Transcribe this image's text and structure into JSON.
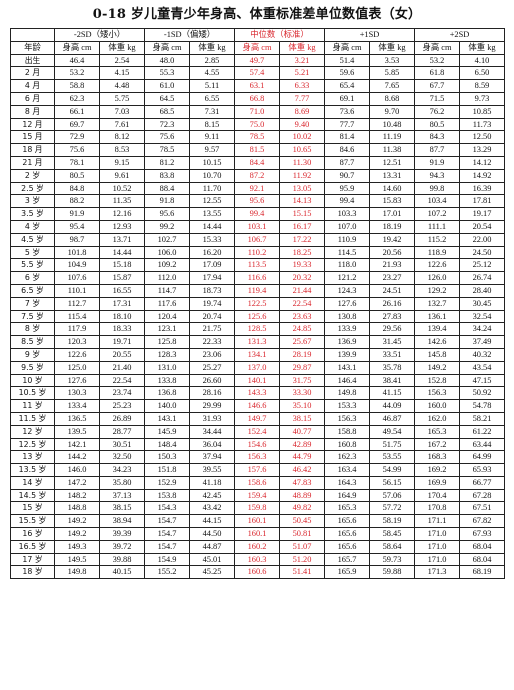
{
  "title": "0-18 岁儿童青少年身高、体重标准差单位数值表（女）",
  "groups": [
    "-2SD（矮小）",
    "-1SD（偏矮）",
    "中位数（标准）",
    "+1SD",
    "+2SD"
  ],
  "column_headers": [
    "年龄",
    "身高 cm",
    "体重 kg",
    "身高 cm",
    "体重 kg",
    "身高 cm",
    "体重 kg",
    "身高 cm",
    "体重 kg",
    "身高 cm",
    "体重 kg"
  ],
  "colors": {
    "accent_red": "#d9272e",
    "text": "#111111"
  },
  "rows": [
    [
      "出生",
      "46.4",
      "2.54",
      "48.0",
      "2.85",
      "49.7",
      "3.21",
      "51.4",
      "3.53",
      "53.2",
      "4.10"
    ],
    [
      "2 月",
      "53.2",
      "4.15",
      "55.3",
      "4.55",
      "57.4",
      "5.21",
      "59.6",
      "5.85",
      "61.8",
      "6.50"
    ],
    [
      "4 月",
      "58.8",
      "4.48",
      "61.0",
      "5.11",
      "63.1",
      "6.33",
      "65.4",
      "7.65",
      "67.7",
      "8.59"
    ],
    [
      "6 月",
      "62.3",
      "5.75",
      "64.5",
      "6.55",
      "66.8",
      "7.77",
      "69.1",
      "8.68",
      "71.5",
      "9.73"
    ],
    [
      "8 月",
      "66.1",
      "7.03",
      "68.5",
      "7.31",
      "71.0",
      "8.69",
      "73.6",
      "9.70",
      "76.2",
      "10.85"
    ],
    [
      "12 月",
      "69.7",
      "7.61",
      "72.3",
      "8.15",
      "75.0",
      "9.40",
      "77.7",
      "10.48",
      "80.5",
      "11.73"
    ],
    [
      "15 月",
      "72.9",
      "8.12",
      "75.6",
      "9.11",
      "78.5",
      "10.02",
      "81.4",
      "11.19",
      "84.3",
      "12.50"
    ],
    [
      "18 月",
      "75.6",
      "8.53",
      "78.5",
      "9.57",
      "81.5",
      "10.65",
      "84.6",
      "11.38",
      "87.7",
      "13.29"
    ],
    [
      "21 月",
      "78.1",
      "9.15",
      "81.2",
      "10.15",
      "84.4",
      "11.30",
      "87.7",
      "12.51",
      "91.9",
      "14.12"
    ],
    [
      "2 岁",
      "80.5",
      "9.61",
      "83.8",
      "10.70",
      "87.2",
      "11.92",
      "90.7",
      "13.31",
      "94.3",
      "14.92"
    ],
    [
      "2.5 岁",
      "84.8",
      "10.52",
      "88.4",
      "11.70",
      "92.1",
      "13.05",
      "95.9",
      "14.60",
      "99.8",
      "16.39"
    ],
    [
      "3 岁",
      "88.2",
      "11.35",
      "91.8",
      "12.55",
      "95.6",
      "14.13",
      "99.4",
      "15.83",
      "103.4",
      "17.81"
    ],
    [
      "3.5 岁",
      "91.9",
      "12.16",
      "95.6",
      "13.55",
      "99.4",
      "15.15",
      "103.3",
      "17.01",
      "107.2",
      "19.17"
    ],
    [
      "4 岁",
      "95.4",
      "12.93",
      "99.2",
      "14.44",
      "103.1",
      "16.17",
      "107.0",
      "18.19",
      "111.1",
      "20.54"
    ],
    [
      "4.5 岁",
      "98.7",
      "13.71",
      "102.7",
      "15.33",
      "106.7",
      "17.22",
      "110.9",
      "19.42",
      "115.2",
      "22.00"
    ],
    [
      "5 岁",
      "101.8",
      "14.44",
      "106.0",
      "16.20",
      "110.2",
      "18.25",
      "114.5",
      "20.56",
      "118.9",
      "24.50"
    ],
    [
      "5.5 岁",
      "104.9",
      "15.18",
      "109.2",
      "17.09",
      "113.5",
      "19.33",
      "118.0",
      "21.93",
      "122.6",
      "25.12"
    ],
    [
      "6 岁",
      "107.6",
      "15.87",
      "112.0",
      "17.94",
      "116.6",
      "20.32",
      "121.2",
      "23.27",
      "126.0",
      "26.74"
    ],
    [
      "6.5 岁",
      "110.1",
      "16.55",
      "114.7",
      "18.73",
      "119.4",
      "21.44",
      "124.3",
      "24.51",
      "129.2",
      "28.40"
    ],
    [
      "7 岁",
      "112.7",
      "17.31",
      "117.6",
      "19.74",
      "122.5",
      "22.54",
      "127.6",
      "26.16",
      "132.7",
      "30.45"
    ],
    [
      "7.5 岁",
      "115.4",
      "18.10",
      "120.4",
      "20.74",
      "125.6",
      "23.63",
      "130.8",
      "27.83",
      "136.1",
      "32.54"
    ],
    [
      "8 岁",
      "117.9",
      "18.33",
      "123.1",
      "21.75",
      "128.5",
      "24.85",
      "133.9",
      "29.56",
      "139.4",
      "34.24"
    ],
    [
      "8.5 岁",
      "120.3",
      "19.71",
      "125.8",
      "22.33",
      "131.3",
      "25.67",
      "136.9",
      "31.45",
      "142.6",
      "37.49"
    ],
    [
      "9 岁",
      "122.6",
      "20.55",
      "128.3",
      "23.06",
      "134.1",
      "28.19",
      "139.9",
      "33.51",
      "145.8",
      "40.32"
    ],
    [
      "9.5 岁",
      "125.0",
      "21.40",
      "131.0",
      "25.27",
      "137.0",
      "29.87",
      "143.1",
      "35.78",
      "149.2",
      "43.54"
    ],
    [
      "10 岁",
      "127.6",
      "22.54",
      "133.8",
      "26.60",
      "140.1",
      "31.75",
      "146.4",
      "38.41",
      "152.8",
      "47.15"
    ],
    [
      "10.5 岁",
      "130.3",
      "23.74",
      "136.8",
      "28.16",
      "143.3",
      "33.30",
      "149.8",
      "41.15",
      "156.3",
      "50.92"
    ],
    [
      "11 岁",
      "133.4",
      "25.23",
      "140.0",
      "29.99",
      "146.6",
      "35.10",
      "153.3",
      "44.09",
      "160.0",
      "54.78"
    ],
    [
      "11.5 岁",
      "136.5",
      "26.89",
      "143.1",
      "31.93",
      "149.7",
      "38.15",
      "156.3",
      "46.87",
      "162.0",
      "58.21"
    ],
    [
      "12 岁",
      "139.5",
      "28.77",
      "145.9",
      "34.44",
      "152.4",
      "40.77",
      "158.8",
      "49.54",
      "165.3",
      "61.22"
    ],
    [
      "12.5 岁",
      "142.1",
      "30.51",
      "148.4",
      "36.04",
      "154.6",
      "42.89",
      "160.8",
      "51.75",
      "167.2",
      "63.44"
    ],
    [
      "13 岁",
      "144.2",
      "32.50",
      "150.3",
      "37.94",
      "156.3",
      "44.79",
      "162.3",
      "53.55",
      "168.3",
      "64.99"
    ],
    [
      "13.5 岁",
      "146.0",
      "34.23",
      "151.8",
      "39.55",
      "157.6",
      "46.42",
      "163.4",
      "54.99",
      "169.2",
      "65.93"
    ],
    [
      "14 岁",
      "147.2",
      "35.80",
      "152.9",
      "41.18",
      "158.6",
      "47.83",
      "164.3",
      "56.15",
      "169.9",
      "66.77"
    ],
    [
      "14.5 岁",
      "148.2",
      "37.13",
      "153.8",
      "42.45",
      "159.4",
      "48.89",
      "164.9",
      "57.06",
      "170.4",
      "67.28"
    ],
    [
      "15 岁",
      "148.8",
      "38.15",
      "154.3",
      "43.42",
      "159.8",
      "49.82",
      "165.3",
      "57.72",
      "170.8",
      "67.51"
    ],
    [
      "15.5 岁",
      "149.2",
      "38.94",
      "154.7",
      "44.15",
      "160.1",
      "50.45",
      "165.6",
      "58.19",
      "171.1",
      "67.82"
    ],
    [
      "16 岁",
      "149.2",
      "39.39",
      "154.7",
      "44.50",
      "160.1",
      "50.81",
      "165.6",
      "58.45",
      "171.0",
      "67.93"
    ],
    [
      "16.5 岁",
      "149.3",
      "39.72",
      "154.7",
      "44.87",
      "160.2",
      "51.07",
      "165.6",
      "58.64",
      "171.0",
      "68.04"
    ],
    [
      "17 岁",
      "149.5",
      "39.88",
      "154.9",
      "45.01",
      "160.3",
      "51.20",
      "165.7",
      "59.73",
      "171.0",
      "68.04"
    ],
    [
      "18 岁",
      "149.8",
      "40.15",
      "155.2",
      "45.25",
      "160.6",
      "51.41",
      "165.9",
      "59.88",
      "171.3",
      "68.19"
    ]
  ]
}
